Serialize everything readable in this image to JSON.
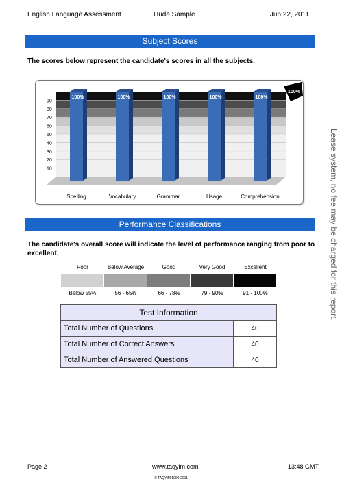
{
  "header": {
    "title": "English Language Assessment",
    "candidate": "Huda Sample",
    "date": "Jun 22, 2011"
  },
  "subject_scores": {
    "heading": "Subject Scores",
    "intro": "The scores below represent the candidate's scores in all the subjects."
  },
  "chart_data": {
    "type": "bar",
    "categories": [
      "Spelling",
      "Vocabulary",
      "Grammar",
      "Usage",
      "Comprehension"
    ],
    "values": [
      100,
      100,
      100,
      100,
      100
    ],
    "data_labels": [
      "100%",
      "100%",
      "100%",
      "100%",
      "100%"
    ],
    "overall_badge": "100%",
    "ylim": [
      0,
      100
    ],
    "yticks": [
      10,
      20,
      30,
      40,
      50,
      60,
      70,
      80,
      90
    ],
    "bar_color": "#3a6db5",
    "band_colors": [
      "#f0f0f0",
      "#e0e0e0",
      "#c8c8c8",
      "#7a7a7a",
      "#4c4c4c",
      "#111111"
    ]
  },
  "performance": {
    "heading": "Performance Classifications",
    "intro": "The candidate's overall score will indicate the level of performance ranging from poor to excellent.",
    "levels": [
      {
        "label": "Poor",
        "range": "Below 55%",
        "color": "#d1d1d1"
      },
      {
        "label": "Below Average",
        "range": "56 - 65%",
        "color": "#a8a8a8"
      },
      {
        "label": "Good",
        "range": "66 - 78%",
        "color": "#7d7d7d"
      },
      {
        "label": "Very Good",
        "range": "79 - 90%",
        "color": "#3a3a3a"
      },
      {
        "label": "Excellent",
        "range": "91 - 100%",
        "color": "#050505"
      }
    ]
  },
  "test_info": {
    "heading": "Test Information",
    "rows": [
      {
        "label": "Total Number of Questions",
        "value": "40"
      },
      {
        "label": "Total Number of Correct Answers",
        "value": "40"
      },
      {
        "label": "Total Number of Answered Questions",
        "value": "40"
      }
    ]
  },
  "side_note": "Lease system, no fee may be charged for this report.",
  "footer": {
    "page": "Page  2",
    "website": "www.taqyim.com",
    "time": "13:48 GMT",
    "copyright": "© TAQYIM 1999-2011"
  }
}
